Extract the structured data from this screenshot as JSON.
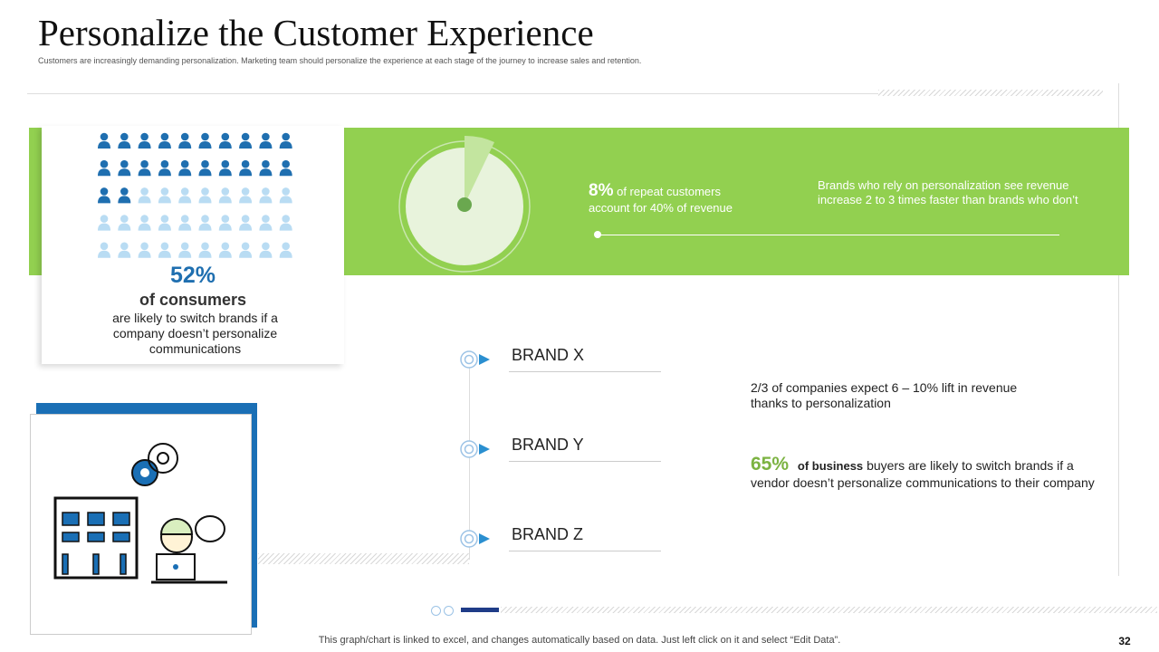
{
  "header": {
    "title": "Personalize the Customer Experience",
    "subtitle": "Customers are increasingly demanding personalization. Marketing team should personalize the experience at each stage of the journey to increase sales and retention."
  },
  "consumers": {
    "stat": "52%",
    "headline": "of consumers",
    "text": "are likely to switch brands if a company doesn’t personalize communications"
  },
  "repeat": {
    "stat": "8%",
    "text": "of repeat customers account for 40% of revenue"
  },
  "brands_note": "Brands who rely on personalization see revenue increase 2 to 3 times faster than brands who don’t",
  "brands": [
    "BRAND X",
    "BRAND Y",
    "BRAND Z"
  ],
  "lift_note": "2/3 of companies expect 6 – 10% lift in revenue thanks to personalization",
  "business": {
    "stat": "65%",
    "bold": "of business",
    "text": "buyers are likely to switch brands if a vendor doesn’t personalize communications to their company"
  },
  "footer": {
    "note": "This graph/chart is linked to excel, and changes automatically based on data. Just left click on it and select “Edit Data”.",
    "page": "32"
  }
}
